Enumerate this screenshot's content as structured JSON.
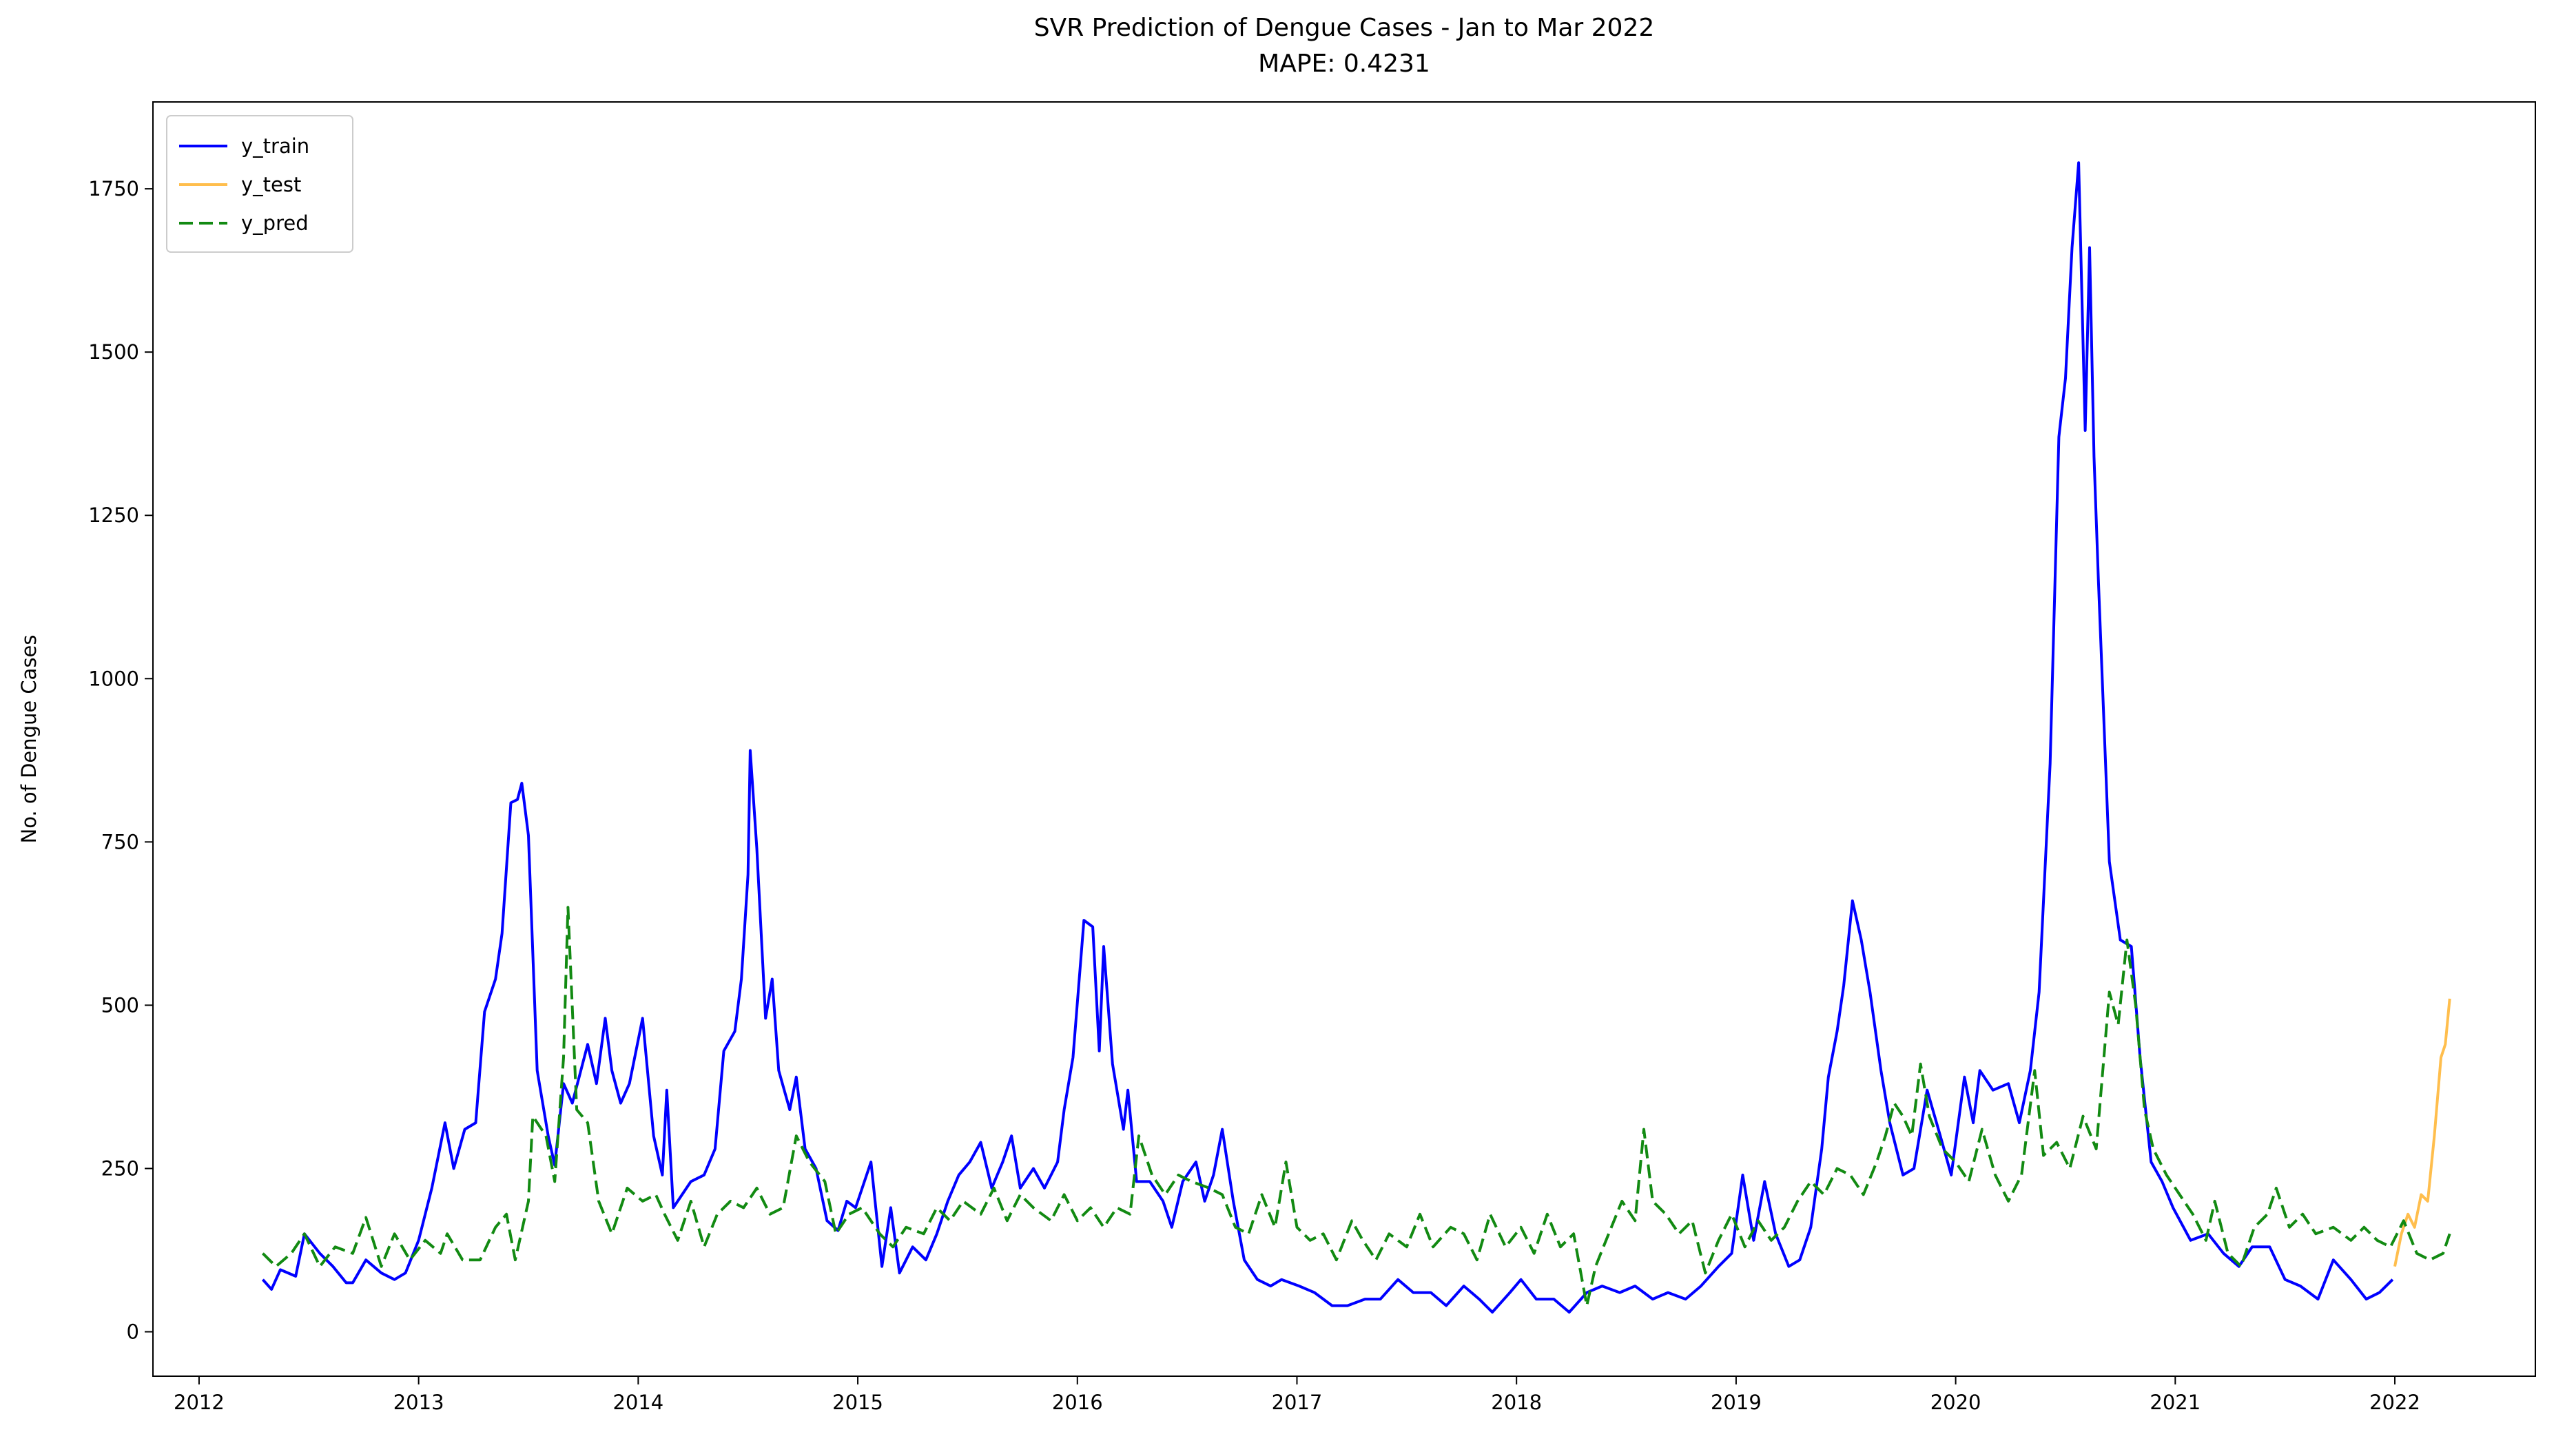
{
  "chart_data": {
    "type": "line",
    "title": "SVR Prediction of Dengue Cases - Jan to Mar 2022",
    "subtitle": "MAPE: 0.4231",
    "y_label": "No. of Dengue Cases",
    "xlim": [
      2011.79,
      2022.64
    ],
    "xticks": [
      2012,
      2013,
      2014,
      2015,
      2016,
      2017,
      2018,
      2019,
      2020,
      2021,
      2022
    ],
    "ylim": [
      -68,
      1883
    ],
    "yticks": [
      0,
      250,
      500,
      750,
      1000,
      1250,
      1500,
      1750
    ],
    "grid": false,
    "legend": "upper left",
    "series": [
      {
        "name": "y_train",
        "color": "#0000ff",
        "linestyle": "solid",
        "x": [
          2012.29,
          2012.33,
          2012.37,
          2012.44,
          2012.48,
          2012.55,
          2012.61,
          2012.67,
          2012.7,
          2012.76,
          2012.83,
          2012.89,
          2012.94,
          2013.0,
          2013.06,
          2013.12,
          2013.16,
          2013.21,
          2013.26,
          2013.3,
          2013.35,
          2013.38,
          2013.42,
          2013.45,
          2013.47,
          2013.5,
          2013.54,
          2013.59,
          2013.62,
          2013.66,
          2013.7,
          2013.77,
          2013.81,
          2013.85,
          2013.88,
          2013.92,
          2013.96,
          2014.02,
          2014.07,
          2014.11,
          2014.13,
          2014.16,
          2014.24,
          2014.3,
          2014.35,
          2014.39,
          2014.44,
          2014.47,
          2014.5,
          2014.51,
          2014.54,
          2014.58,
          2014.61,
          2014.64,
          2014.69,
          2014.72,
          2014.76,
          2014.81,
          2014.86,
          2014.91,
          2014.95,
          2014.99,
          2015.06,
          2015.11,
          2015.15,
          2015.19,
          2015.25,
          2015.31,
          2015.36,
          2015.41,
          2015.46,
          2015.51,
          2015.56,
          2015.61,
          2015.66,
          2015.7,
          2015.74,
          2015.8,
          2015.85,
          2015.91,
          2015.94,
          2015.98,
          2016.03,
          2016.07,
          2016.1,
          2016.12,
          2016.16,
          2016.21,
          2016.23,
          2016.27,
          2016.33,
          2016.39,
          2016.43,
          2016.48,
          2016.54,
          2016.58,
          2016.62,
          2016.66,
          2016.71,
          2016.76,
          2016.82,
          2016.88,
          2016.93,
          2017.01,
          2017.08,
          2017.16,
          2017.23,
          2017.31,
          2017.38,
          2017.46,
          2017.53,
          2017.61,
          2017.68,
          2017.76,
          2017.83,
          2017.89,
          2017.97,
          2018.02,
          2018.09,
          2018.17,
          2018.24,
          2018.32,
          2018.39,
          2018.47,
          2018.54,
          2018.62,
          2018.69,
          2018.77,
          2018.84,
          2018.92,
          2018.98,
          2019.03,
          2019.08,
          2019.13,
          2019.18,
          2019.24,
          2019.29,
          2019.34,
          2019.39,
          2019.42,
          2019.46,
          2019.49,
          2019.53,
          2019.57,
          2019.61,
          2019.66,
          2019.7,
          2019.76,
          2019.81,
          2019.87,
          2019.93,
          2019.98,
          2020.04,
          2020.08,
          2020.11,
          2020.17,
          2020.24,
          2020.29,
          2020.34,
          2020.38,
          2020.43,
          2020.47,
          2020.5,
          2020.53,
          2020.56,
          2020.59,
          2020.61,
          2020.63,
          2020.65,
          2020.7,
          2020.75,
          2020.8,
          2020.84,
          2020.89,
          2020.94,
          2020.99,
          2021.07,
          2021.15,
          2021.22,
          2021.29,
          2021.35,
          2021.43,
          2021.5,
          2021.57,
          2021.65,
          2021.72,
          2021.8,
          2021.87,
          2021.93,
          2021.99
        ],
        "values": [
          80,
          65,
          95,
          85,
          150,
          120,
          100,
          75,
          75,
          110,
          90,
          80,
          90,
          140,
          220,
          320,
          250,
          310,
          320,
          490,
          540,
          610,
          810,
          815,
          840,
          760,
          400,
          300,
          255,
          380,
          350,
          440,
          380,
          480,
          400,
          350,
          380,
          480,
          300,
          240,
          370,
          190,
          230,
          240,
          280,
          430,
          460,
          540,
          700,
          890,
          740,
          480,
          540,
          400,
          340,
          390,
          280,
          250,
          170,
          155,
          200,
          190,
          260,
          100,
          190,
          90,
          130,
          110,
          150,
          200,
          240,
          260,
          290,
          220,
          260,
          300,
          220,
          250,
          220,
          260,
          340,
          420,
          630,
          620,
          430,
          590,
          410,
          310,
          370,
          230,
          230,
          200,
          160,
          230,
          260,
          200,
          240,
          310,
          200,
          110,
          80,
          70,
          80,
          70,
          60,
          40,
          40,
          50,
          50,
          80,
          60,
          60,
          40,
          70,
          50,
          30,
          60,
          80,
          50,
          50,
          30,
          60,
          70,
          60,
          70,
          50,
          60,
          50,
          70,
          100,
          120,
          240,
          140,
          230,
          150,
          100,
          110,
          160,
          280,
          390,
          460,
          530,
          660,
          600,
          520,
          400,
          320,
          240,
          250,
          370,
          300,
          240,
          390,
          320,
          400,
          370,
          380,
          320,
          400,
          520,
          870,
          1370,
          1460,
          1660,
          1790,
          1380,
          1660,
          1340,
          1150,
          720,
          600,
          590,
          420,
          260,
          230,
          190,
          140,
          150,
          120,
          100,
          130,
          130,
          80,
          70,
          50,
          110,
          80,
          50,
          60,
          80
        ]
      },
      {
        "name": "y_test",
        "color": "#ffbe4d",
        "linestyle": "solid",
        "x": [
          2022.0,
          2022.03,
          2022.06,
          2022.09,
          2022.12,
          2022.15,
          2022.18,
          2022.21,
          2022.23,
          2022.25
        ],
        "values": [
          100,
          150,
          180,
          160,
          210,
          200,
          300,
          420,
          440,
          510
        ]
      },
      {
        "name": "y_pred",
        "color": "#128a12",
        "linestyle": "dashed",
        "x": [
          2012.29,
          2012.35,
          2012.42,
          2012.48,
          2012.55,
          2012.62,
          2012.7,
          2012.76,
          2012.83,
          2012.89,
          2012.96,
          2013.03,
          2013.1,
          2013.13,
          2013.2,
          2013.28,
          2013.35,
          2013.4,
          2013.44,
          2013.5,
          2013.52,
          2013.58,
          2013.62,
          2013.66,
          2013.68,
          2013.72,
          2013.77,
          2013.82,
          2013.88,
          2013.95,
          2014.02,
          2014.08,
          2014.12,
          2014.18,
          2014.24,
          2014.3,
          2014.36,
          2014.42,
          2014.48,
          2014.54,
          2014.6,
          2014.66,
          2014.72,
          2014.78,
          2014.85,
          2014.9,
          2014.96,
          2015.02,
          2015.1,
          2015.16,
          2015.22,
          2015.3,
          2015.36,
          2015.42,
          2015.48,
          2015.56,
          2015.62,
          2015.68,
          2015.74,
          2015.8,
          2015.88,
          2015.94,
          2016.0,
          2016.06,
          2016.12,
          2016.18,
          2016.24,
          2016.28,
          2016.34,
          2016.4,
          2016.46,
          2016.52,
          2016.6,
          2016.66,
          2016.72,
          2016.78,
          2016.84,
          2016.9,
          2016.95,
          2017.0,
          2017.06,
          2017.12,
          2017.18,
          2017.25,
          2017.3,
          2017.36,
          2017.42,
          2017.5,
          2017.56,
          2017.62,
          2017.7,
          2017.76,
          2017.82,
          2017.88,
          2017.95,
          2018.02,
          2018.08,
          2018.14,
          2018.2,
          2018.26,
          2018.32,
          2018.36,
          2018.42,
          2018.48,
          2018.54,
          2018.58,
          2018.62,
          2018.68,
          2018.74,
          2018.8,
          2018.86,
          2018.92,
          2018.98,
          2019.04,
          2019.1,
          2019.16,
          2019.22,
          2019.28,
          2019.34,
          2019.4,
          2019.46,
          2019.52,
          2019.58,
          2019.64,
          2019.68,
          2019.72,
          2019.76,
          2019.8,
          2019.84,
          2019.88,
          2019.94,
          2020.0,
          2020.06,
          2020.12,
          2020.18,
          2020.24,
          2020.3,
          2020.36,
          2020.4,
          2020.46,
          2020.52,
          2020.58,
          2020.64,
          2020.7,
          2020.74,
          2020.78,
          2020.82,
          2020.86,
          2020.9,
          2020.96,
          2021.02,
          2021.08,
          2021.14,
          2021.18,
          2021.24,
          2021.3,
          2021.36,
          2021.42,
          2021.46,
          2021.52,
          2021.58,
          2021.64,
          2021.72,
          2021.8,
          2021.86,
          2021.92,
          2021.98,
          2022.04,
          2022.1,
          2022.16,
          2022.22,
          2022.25
        ],
        "values": [
          120,
          100,
          120,
          150,
          100,
          130,
          120,
          175,
          100,
          150,
          110,
          140,
          120,
          150,
          110,
          110,
          160,
          180,
          110,
          200,
          330,
          300,
          230,
          420,
          650,
          340,
          320,
          200,
          150,
          220,
          200,
          210,
          180,
          140,
          200,
          130,
          180,
          200,
          190,
          220,
          180,
          190,
          300,
          260,
          230,
          150,
          180,
          190,
          150,
          130,
          160,
          150,
          190,
          170,
          200,
          180,
          220,
          170,
          210,
          190,
          170,
          210,
          170,
          190,
          160,
          190,
          180,
          300,
          240,
          210,
          240,
          230,
          220,
          210,
          160,
          150,
          210,
          160,
          260,
          160,
          140,
          150,
          110,
          170,
          140,
          110,
          150,
          130,
          180,
          130,
          160,
          150,
          110,
          180,
          130,
          160,
          120,
          180,
          130,
          150,
          40,
          100,
          150,
          200,
          170,
          310,
          200,
          180,
          150,
          170,
          90,
          140,
          180,
          130,
          170,
          140,
          160,
          200,
          230,
          210,
          250,
          240,
          210,
          260,
          300,
          350,
          330,
          300,
          410,
          330,
          280,
          260,
          230,
          310,
          240,
          200,
          240,
          400,
          270,
          290,
          250,
          330,
          280,
          520,
          470,
          600,
          500,
          340,
          280,
          240,
          210,
          180,
          140,
          200,
          120,
          100,
          160,
          180,
          220,
          160,
          180,
          150,
          160,
          140,
          160,
          140,
          130,
          170,
          120,
          110,
          120,
          150
        ]
      }
    ]
  }
}
